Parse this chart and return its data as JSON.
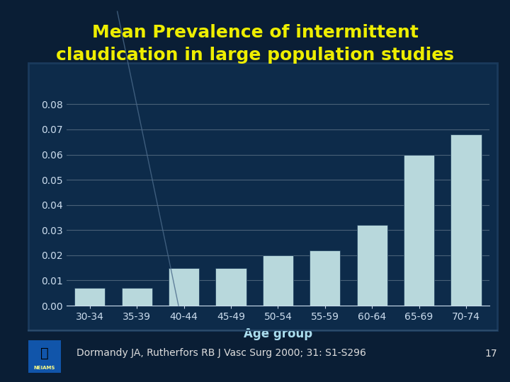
{
  "title_line1": "Mean Prevalence of intermittent",
  "title_line2": "claudication in large population studies",
  "title_color": "#EEEE00",
  "categories": [
    "30-34",
    "35-39",
    "40-44",
    "45-49",
    "50-54",
    "55-59",
    "60-64",
    "65-69",
    "70-74"
  ],
  "values": [
    0.007,
    0.007,
    0.015,
    0.015,
    0.02,
    0.022,
    0.032,
    0.06,
    0.068
  ],
  "bar_color": "#B8D8DC",
  "bar_edge_color": "#1A3A5A",
  "xlabel": "Age group",
  "xlabel_color": "#AADDEE",
  "xlabel_fontsize": 12,
  "ylabel_ticks": [
    0,
    0.01,
    0.02,
    0.03,
    0.04,
    0.05,
    0.06,
    0.07,
    0.08
  ],
  "ylim": [
    0,
    0.085
  ],
  "tick_color": "#CCDDEE",
  "tick_fontsize": 10,
  "background_outer": "#0A1E35",
  "background_plot": "#0D2B4A",
  "plot_border_color": "#1A3A5A",
  "grid_color": "#FFFFFF",
  "grid_alpha": 0.25,
  "footnote": "Dormandy JA, Rutherfors RB J Vasc Surg 2000; 31: S1-S296",
  "footnote_color": "#DDDDDD",
  "footnote_fontsize": 10,
  "page_number": "17",
  "title_fontsize": 18,
  "diag_line_color": "#4A6A8A",
  "diag_line_alpha": 0.8
}
